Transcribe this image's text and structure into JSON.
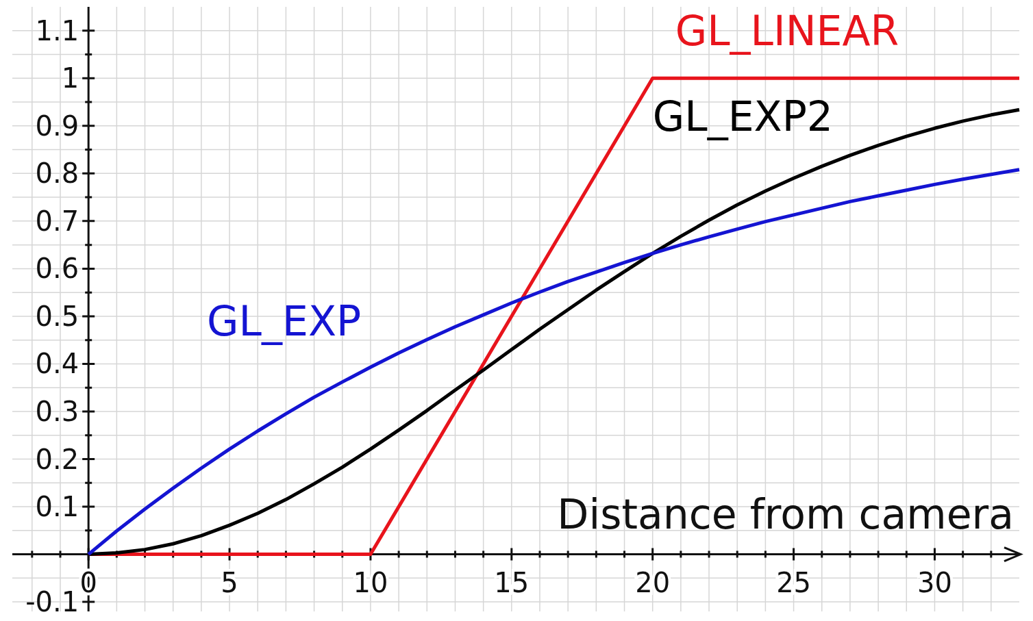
{
  "chart_data": {
    "type": "line",
    "xlabel": "Distance from camera",
    "x": [
      0,
      1,
      2,
      3,
      4,
      5,
      6,
      7,
      8,
      9,
      10,
      11,
      12,
      13,
      14,
      15,
      16,
      17,
      18,
      19,
      20,
      21,
      22,
      23,
      24,
      25,
      26,
      27,
      28,
      29,
      30,
      31,
      32,
      33
    ],
    "series": [
      {
        "name": "GL_LINEAR",
        "color": "#e8141c",
        "x": [
          0,
          10,
          20,
          33
        ],
        "values": [
          0,
          0,
          1,
          1
        ]
      },
      {
        "name": "GL_EXP2",
        "color": "#000000",
        "values": [
          0,
          0.003,
          0.01,
          0.022,
          0.039,
          0.061,
          0.086,
          0.115,
          0.148,
          0.183,
          0.221,
          0.261,
          0.302,
          0.345,
          0.387,
          0.43,
          0.473,
          0.514,
          0.555,
          0.594,
          0.632,
          0.668,
          0.702,
          0.734,
          0.763,
          0.79,
          0.815,
          0.838,
          0.859,
          0.878,
          0.895,
          0.91,
          0.923,
          0.934
        ]
      },
      {
        "name": "GL_EXP",
        "color": "#1414d2",
        "values": [
          0,
          0.049,
          0.095,
          0.139,
          0.181,
          0.221,
          0.259,
          0.295,
          0.33,
          0.362,
          0.393,
          0.423,
          0.451,
          0.478,
          0.503,
          0.528,
          0.551,
          0.573,
          0.593,
          0.613,
          0.632,
          0.65,
          0.667,
          0.683,
          0.699,
          0.713,
          0.727,
          0.741,
          0.753,
          0.765,
          0.777,
          0.788,
          0.798,
          0.808
        ]
      }
    ],
    "xlim": [
      -2.7,
      33
    ],
    "ylim": [
      -0.12,
      1.15
    ],
    "xticks": [
      {
        "value": -2,
        "label": null
      },
      {
        "value": -1,
        "label": null
      },
      0,
      {
        "value": 1,
        "label": null
      },
      {
        "value": 2,
        "label": null
      },
      {
        "value": 3,
        "label": null
      },
      {
        "value": 4,
        "label": null
      },
      5,
      {
        "value": 6,
        "label": null
      },
      {
        "value": 7,
        "label": null
      },
      {
        "value": 8,
        "label": null
      },
      {
        "value": 9,
        "label": null
      },
      10,
      {
        "value": 11,
        "label": null
      },
      {
        "value": 12,
        "label": null
      },
      {
        "value": 13,
        "label": null
      },
      {
        "value": 14,
        "label": null
      },
      15,
      {
        "value": 16,
        "label": null
      },
      {
        "value": 17,
        "label": null
      },
      {
        "value": 18,
        "label": null
      },
      {
        "value": 19,
        "label": null
      },
      20,
      {
        "value": 21,
        "label": null
      },
      {
        "value": 22,
        "label": null
      },
      {
        "value": 23,
        "label": null
      },
      {
        "value": 24,
        "label": null
      },
      25,
      {
        "value": 26,
        "label": null
      },
      {
        "value": 27,
        "label": null
      },
      {
        "value": 28,
        "label": null
      },
      {
        "value": 29,
        "label": null
      },
      30,
      {
        "value": 31,
        "label": null
      },
      {
        "value": 32,
        "label": null
      }
    ],
    "yticks": [
      -0.1,
      {
        "value": -0.05,
        "label": null
      },
      {
        "value": 0,
        "label": null
      },
      {
        "value": 0.05,
        "label": null
      },
      0.1,
      {
        "value": 0.15,
        "label": null
      },
      0.2,
      {
        "value": 0.25,
        "label": null
      },
      0.3,
      {
        "value": 0.35,
        "label": null
      },
      0.4,
      {
        "value": 0.45,
        "label": null
      },
      0.5,
      {
        "value": 0.55,
        "label": null
      },
      0.6,
      {
        "value": 0.65,
        "label": null
      },
      0.7,
      {
        "value": 0.75,
        "label": null
      },
      0.8,
      {
        "value": 0.85,
        "label": null
      },
      0.9,
      {
        "value": 0.95,
        "label": null
      },
      1,
      {
        "value": 1.05,
        "label": null
      },
      1.1
    ],
    "grid": true,
    "marker": "none",
    "line_style": "solid"
  }
}
